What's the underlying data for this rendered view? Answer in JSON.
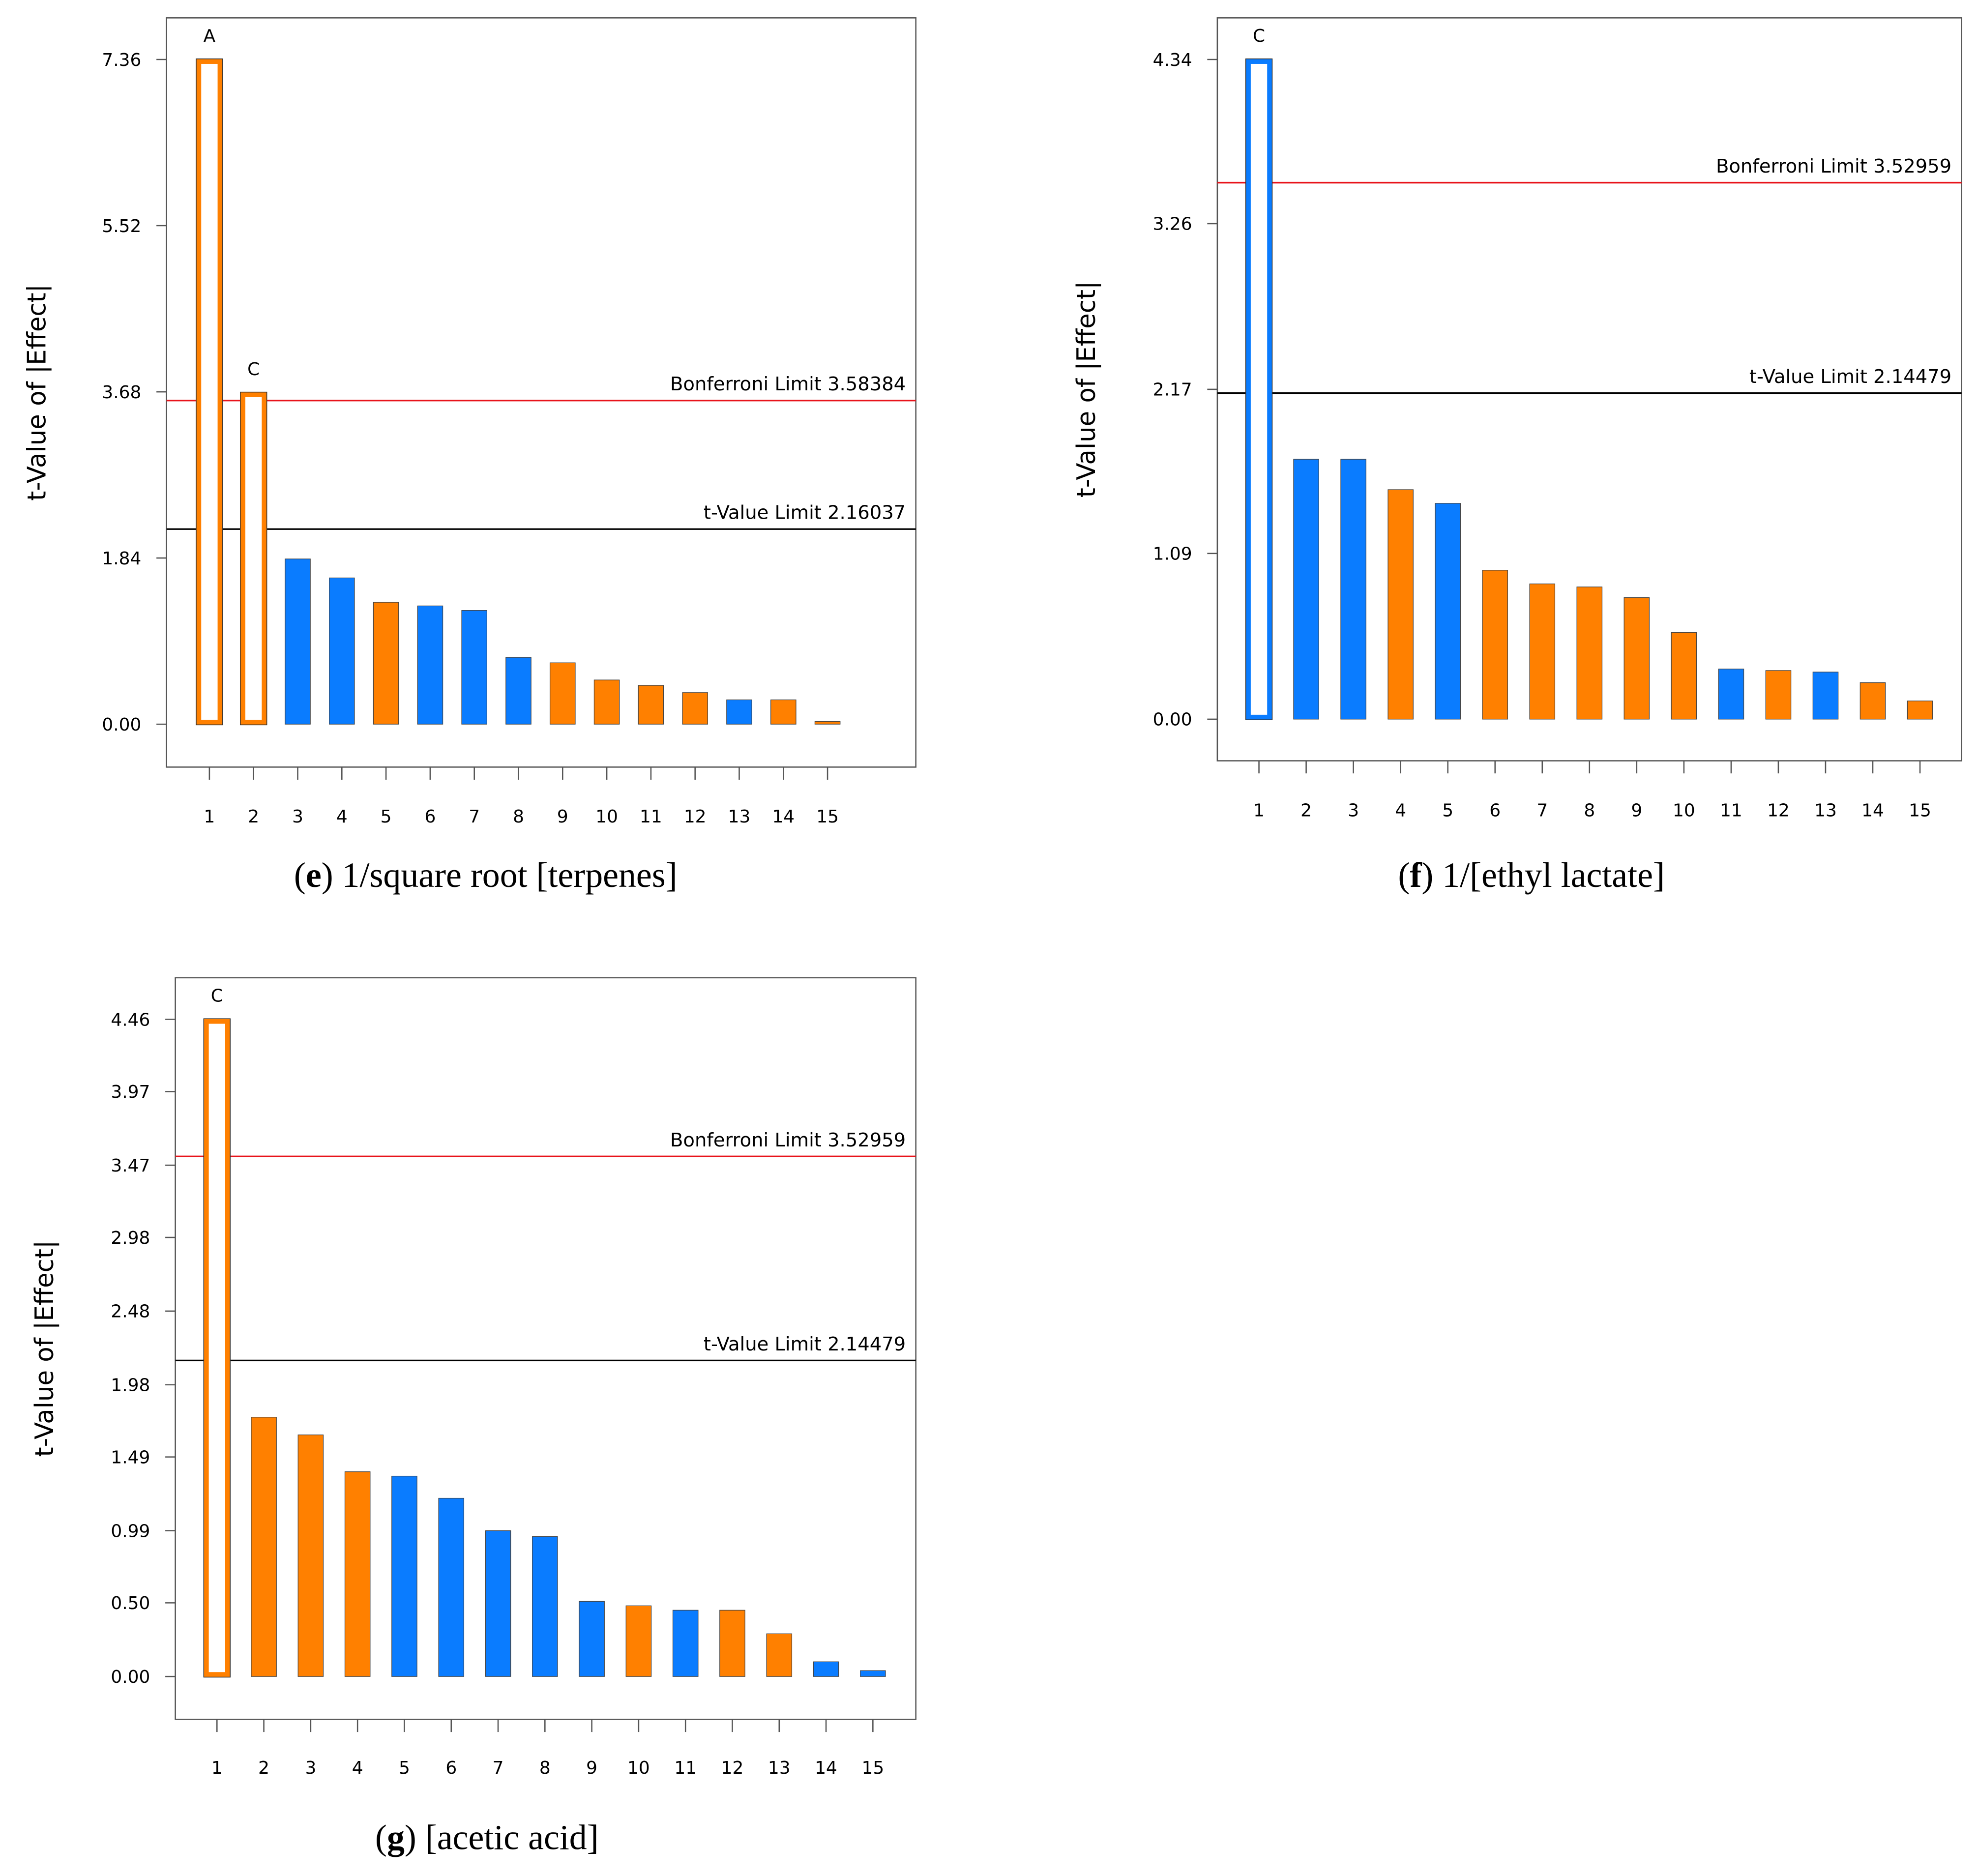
{
  "colors": {
    "orange": "#FF8000",
    "blue": "#0A7CFF",
    "bonferroni": "#E8141B",
    "tlimit": "#000000"
  },
  "chart_data": [
    {
      "type": "bar",
      "caption_letter": "e",
      "caption_text": " 1/square root [terpenes]",
      "ylabel": "t-Value of |Effect|",
      "xlabel": "",
      "categories": [
        "1",
        "2",
        "3",
        "4",
        "5",
        "6",
        "7",
        "8",
        "9",
        "10",
        "11",
        "12",
        "13",
        "14",
        "15"
      ],
      "values": [
        7.36,
        3.67,
        1.83,
        1.62,
        1.35,
        1.31,
        1.26,
        0.74,
        0.68,
        0.49,
        0.43,
        0.35,
        0.27,
        0.27,
        0.03
      ],
      "colors": [
        "orange",
        "orange",
        "blue",
        "blue",
        "orange",
        "blue",
        "blue",
        "blue",
        "orange",
        "orange",
        "orange",
        "orange",
        "blue",
        "orange",
        "orange"
      ],
      "hollow": [
        true,
        true,
        false,
        false,
        false,
        false,
        false,
        false,
        false,
        false,
        false,
        false,
        false,
        false,
        false
      ],
      "bar_labels": [
        "A",
        "C",
        "",
        "",
        "",
        "",
        "",
        "",
        "",
        "",
        "",
        "",
        "",
        "",
        ""
      ],
      "yticks": [
        "0.00",
        "1.84",
        "3.68",
        "5.52",
        "7.36"
      ],
      "ylim": [
        0,
        7.36
      ],
      "bonferroni": {
        "label": "Bonferroni Limit 3.58384",
        "value": 3.58384
      },
      "tlimit": {
        "label": "t-Value Limit 2.16037",
        "value": 2.16037
      }
    },
    {
      "type": "bar",
      "caption_letter": "f",
      "caption_text": " 1/[ethyl lactate]",
      "ylabel": "t-Value of |Effect|",
      "xlabel": "",
      "categories": [
        "1",
        "2",
        "3",
        "4",
        "5",
        "6",
        "7",
        "8",
        "9",
        "10",
        "11",
        "12",
        "13",
        "14",
        "15"
      ],
      "values": [
        4.34,
        1.71,
        1.71,
        1.51,
        1.42,
        0.98,
        0.89,
        0.87,
        0.8,
        0.57,
        0.33,
        0.32,
        0.31,
        0.24,
        0.12
      ],
      "colors": [
        "blue",
        "blue",
        "blue",
        "orange",
        "blue",
        "orange",
        "orange",
        "orange",
        "orange",
        "orange",
        "blue",
        "orange",
        "blue",
        "orange",
        "orange"
      ],
      "hollow": [
        true,
        false,
        false,
        false,
        false,
        false,
        false,
        false,
        false,
        false,
        false,
        false,
        false,
        false,
        false
      ],
      "bar_labels": [
        "C",
        "",
        "",
        "",
        "",
        "",
        "",
        "",
        "",
        "",
        "",
        "",
        "",
        "",
        ""
      ],
      "yticks": [
        "0.00",
        "1.09",
        "2.17",
        "3.26",
        "4.34"
      ],
      "ylim": [
        0,
        4.34
      ],
      "bonferroni": {
        "label": "Bonferroni Limit 3.52959",
        "value": 3.52959
      },
      "tlimit": {
        "label": "t-Value Limit 2.14479",
        "value": 2.14479
      }
    },
    {
      "type": "bar",
      "caption_letter": "g",
      "caption_text": " [acetic acid]",
      "ylabel": "t-Value of |Effect|",
      "xlabel": "",
      "categories": [
        "1",
        "2",
        "3",
        "4",
        "5",
        "6",
        "7",
        "8",
        "9",
        "10",
        "11",
        "12",
        "13",
        "14",
        "15"
      ],
      "values": [
        4.46,
        1.76,
        1.64,
        1.39,
        1.36,
        1.21,
        0.99,
        0.95,
        0.51,
        0.48,
        0.45,
        0.45,
        0.29,
        0.1,
        0.04
      ],
      "colors": [
        "orange",
        "orange",
        "orange",
        "orange",
        "blue",
        "blue",
        "blue",
        "blue",
        "blue",
        "orange",
        "blue",
        "orange",
        "orange",
        "blue",
        "blue"
      ],
      "hollow": [
        true,
        false,
        false,
        false,
        false,
        false,
        false,
        false,
        false,
        false,
        false,
        false,
        false,
        false,
        false
      ],
      "bar_labels": [
        "C",
        "",
        "",
        "",
        "",
        "",
        "",
        "",
        "",
        "",
        "",
        "",
        "",
        "",
        ""
      ],
      "yticks": [
        "0.00",
        "0.50",
        "0.99",
        "1.49",
        "1.98",
        "2.48",
        "2.98",
        "3.47",
        "3.97",
        "4.46"
      ],
      "ylim": [
        0,
        4.46
      ],
      "bonferroni": {
        "label": "Bonferroni Limit 3.52959",
        "value": 3.52959
      },
      "tlimit": {
        "label": "t-Value Limit 2.14479",
        "value": 2.14479
      }
    }
  ]
}
